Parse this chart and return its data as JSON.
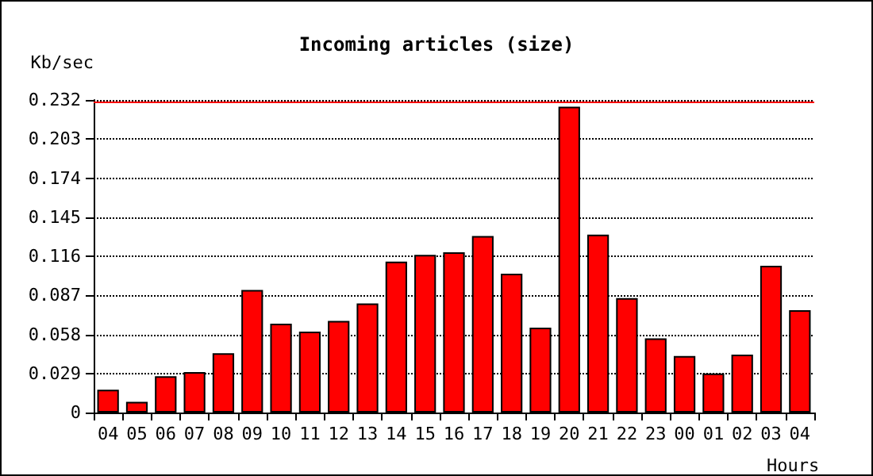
{
  "chart_data": {
    "type": "bar",
    "title": "Incoming articles (size)",
    "ylabel": "Kb/sec",
    "xlabel": "Hours",
    "categories": [
      "04",
      "05",
      "06",
      "07",
      "08",
      "09",
      "10",
      "11",
      "12",
      "13",
      "14",
      "15",
      "16",
      "17",
      "18",
      "19",
      "20",
      "21",
      "22",
      "23",
      "00",
      "01",
      "02",
      "03",
      "04"
    ],
    "values": [
      0.017,
      0.008,
      0.027,
      0.03,
      0.044,
      0.091,
      0.066,
      0.06,
      0.068,
      0.081,
      0.112,
      0.117,
      0.119,
      0.131,
      0.103,
      0.063,
      0.227,
      0.132,
      0.085,
      0.055,
      0.042,
      0.029,
      0.043,
      0.109,
      0.076
    ],
    "color": "#ff0000",
    "ylim": [
      0,
      0.232
    ],
    "yticks": [
      0,
      0.029,
      0.058,
      0.087,
      0.116,
      0.145,
      0.174,
      0.203,
      0.232
    ],
    "ref_lines": [
      {
        "axis": "y",
        "value": 0.232,
        "color": "#ff0000"
      }
    ],
    "grid": "y",
    "line_style": "dotted"
  }
}
